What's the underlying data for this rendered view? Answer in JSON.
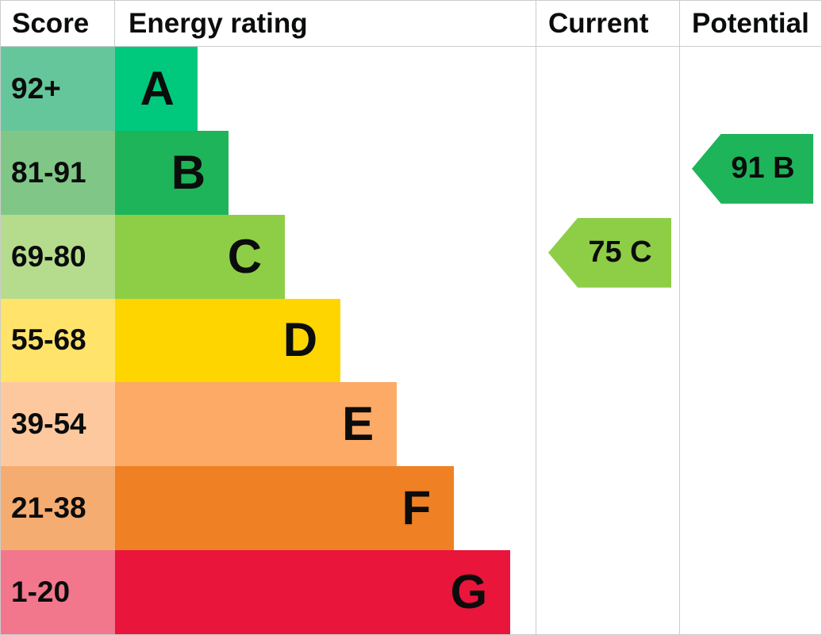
{
  "header": {
    "score": "Score",
    "energy_rating": "Energy rating",
    "current": "Current",
    "potential": "Potential"
  },
  "chart_data": {
    "type": "bar",
    "title": "Energy rating",
    "legend_position": "none",
    "grid": false,
    "bands": [
      {
        "score_range": "92+",
        "letter": "A",
        "bar_color": "#00c97e",
        "score_color": "#65c69b",
        "bar_width_pct": 19.6
      },
      {
        "score_range": "81-91",
        "letter": "B",
        "bar_color": "#1eb45a",
        "score_color": "#80c787",
        "bar_width_pct": 27.0
      },
      {
        "score_range": "69-80",
        "letter": "C",
        "bar_color": "#8dce46",
        "score_color": "#b5dc8c",
        "bar_width_pct": 40.4
      },
      {
        "score_range": "55-68",
        "letter": "D",
        "bar_color": "#ffd500",
        "score_color": "#ffe36b",
        "bar_width_pct": 53.6
      },
      {
        "score_range": "39-54",
        "letter": "E",
        "bar_color": "#fcaa65",
        "score_color": "#fdc89e",
        "bar_width_pct": 67.0
      },
      {
        "score_range": "21-38",
        "letter": "F",
        "bar_color": "#ef8023",
        "score_color": "#f5ac71",
        "bar_width_pct": 80.6
      },
      {
        "score_range": "1-20",
        "letter": "G",
        "bar_color": "#e9153b",
        "score_color": "#f2778c",
        "bar_width_pct": 94.0
      }
    ],
    "current": {
      "label": "75 C",
      "value": 75,
      "band": "C",
      "band_index": 2,
      "color": "#8dce46"
    },
    "potential": {
      "label": "91 B",
      "value": 91,
      "band": "B",
      "band_index": 1,
      "color": "#1eb45a"
    }
  }
}
